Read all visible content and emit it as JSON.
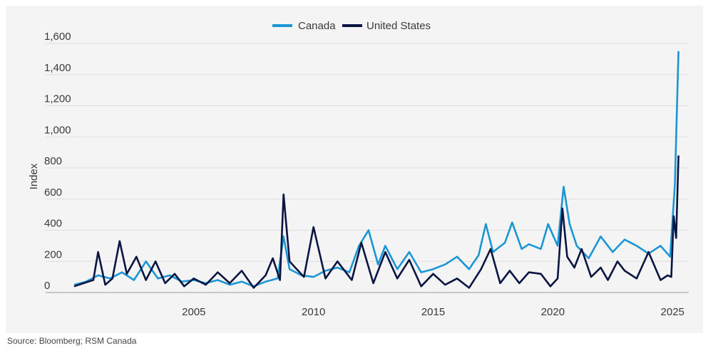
{
  "chart_data": {
    "type": "line",
    "title": "",
    "xlabel": "",
    "ylabel": "Index",
    "ylim": [
      0,
      1600
    ],
    "xlim": [
      2000,
      2025.5
    ],
    "yticks": [
      "0",
      "200",
      "400",
      "600",
      "800",
      "1,000",
      "1,200",
      "1,400",
      "1,600"
    ],
    "xticks": [
      "2005",
      "2010",
      "2015",
      "2020",
      "2025"
    ],
    "legend_position": "top-center",
    "grid": "horizontal",
    "source": "Source: Bloomberg; RSM Canada",
    "series": [
      {
        "name": "Canada",
        "color": "#1b96d4",
        "x": [
          2000.0,
          2000.5,
          2001.0,
          2001.5,
          2002.0,
          2002.5,
          2003.0,
          2003.5,
          2004.0,
          2004.5,
          2005.0,
          2005.5,
          2006.0,
          2006.5,
          2007.0,
          2007.5,
          2008.0,
          2008.5,
          2008.75,
          2009.0,
          2009.5,
          2010.0,
          2010.5,
          2011.0,
          2011.5,
          2011.9,
          2012.3,
          2012.7,
          2013.0,
          2013.5,
          2014.0,
          2014.5,
          2015.0,
          2015.5,
          2016.0,
          2016.5,
          2016.9,
          2017.2,
          2017.5,
          2018.0,
          2018.3,
          2018.7,
          2019.0,
          2019.5,
          2019.8,
          2020.2,
          2020.45,
          2020.7,
          2021.0,
          2021.5,
          2022.0,
          2022.5,
          2023.0,
          2023.5,
          2024.0,
          2024.5,
          2024.9,
          2025.1,
          2025.25
        ],
        "values": [
          50,
          70,
          110,
          90,
          130,
          80,
          200,
          90,
          110,
          70,
          80,
          60,
          80,
          50,
          70,
          40,
          70,
          90,
          360,
          150,
          110,
          100,
          140,
          160,
          130,
          300,
          400,
          180,
          300,
          150,
          260,
          130,
          150,
          180,
          230,
          150,
          240,
          440,
          260,
          320,
          450,
          280,
          310,
          280,
          440,
          300,
          680,
          440,
          300,
          220,
          360,
          260,
          340,
          300,
          250,
          300,
          230,
          700,
          1550
        ]
      },
      {
        "name": "United States",
        "color": "#0b1541",
        "x": [
          2000.0,
          2000.4,
          2000.8,
          2001.0,
          2001.3,
          2001.6,
          2001.9,
          2002.2,
          2002.6,
          2003.0,
          2003.4,
          2003.8,
          2004.2,
          2004.6,
          2005.0,
          2005.5,
          2006.0,
          2006.5,
          2007.0,
          2007.5,
          2008.0,
          2008.3,
          2008.6,
          2008.75,
          2009.0,
          2009.3,
          2009.6,
          2010.0,
          2010.5,
          2011.0,
          2011.6,
          2012.0,
          2012.5,
          2013.0,
          2013.5,
          2014.0,
          2014.5,
          2015.0,
          2015.5,
          2016.0,
          2016.5,
          2017.0,
          2017.4,
          2017.8,
          2018.2,
          2018.6,
          2019.0,
          2019.5,
          2019.9,
          2020.2,
          2020.4,
          2020.6,
          2020.9,
          2021.2,
          2021.6,
          2022.0,
          2022.3,
          2022.7,
          2023.0,
          2023.5,
          2024.0,
          2024.5,
          2024.8,
          2024.95,
          2025.05,
          2025.15,
          2025.25
        ],
        "values": [
          40,
          60,
          80,
          260,
          50,
          90,
          330,
          120,
          230,
          80,
          200,
          60,
          120,
          40,
          90,
          50,
          130,
          60,
          140,
          30,
          110,
          220,
          80,
          630,
          200,
          150,
          100,
          420,
          90,
          200,
          80,
          320,
          60,
          260,
          90,
          210,
          40,
          120,
          50,
          90,
          30,
          150,
          280,
          60,
          140,
          60,
          130,
          120,
          40,
          90,
          540,
          230,
          160,
          280,
          100,
          160,
          80,
          200,
          140,
          90,
          260,
          80,
          110,
          100,
          490,
          350,
          880
        ]
      }
    ]
  }
}
